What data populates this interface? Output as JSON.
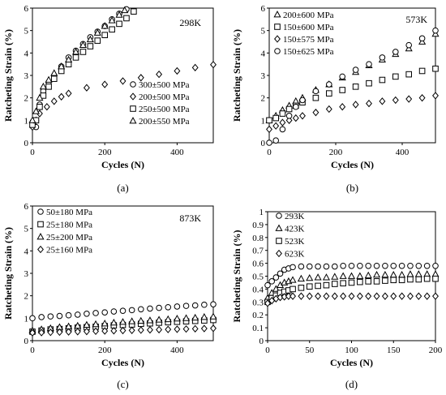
{
  "chart_data": [
    {
      "type": "scatter",
      "panel_label": "(a)",
      "annotation": "298K",
      "xlabel": "Cycles (N)",
      "ylabel": "Ratcheting Strain (%)",
      "xlim": [
        0,
        500
      ],
      "ylim": [
        0,
        6
      ],
      "xticks": [
        0,
        200,
        400
      ],
      "yticks": [
        0,
        1,
        2,
        3,
        4,
        5,
        6
      ],
      "legend": "bottom-right",
      "series": [
        {
          "name": "300±500 MPa",
          "marker": "circle",
          "x": [
            0,
            10,
            20,
            30,
            45,
            60,
            80,
            100,
            120,
            140,
            160,
            180,
            200,
            220,
            240,
            260
          ],
          "y": [
            0.9,
            0.7,
            1.7,
            2.3,
            2.7,
            3.0,
            3.4,
            3.8,
            4.1,
            4.4,
            4.7,
            4.95,
            5.2,
            5.5,
            5.75,
            5.95
          ]
        },
        {
          "name": "200±500 MPa",
          "marker": "diamond",
          "x": [
            0,
            10,
            20,
            40,
            60,
            80,
            100,
            150,
            200,
            250,
            300,
            350,
            400,
            450,
            500
          ],
          "y": [
            0.7,
            1.0,
            1.3,
            1.6,
            1.85,
            2.05,
            2.2,
            2.45,
            2.6,
            2.75,
            2.9,
            3.05,
            3.2,
            3.35,
            3.48
          ]
        },
        {
          "name": "250±500 MPa",
          "marker": "square",
          "x": [
            0,
            10,
            20,
            30,
            45,
            60,
            80,
            100,
            120,
            140,
            160,
            180,
            200,
            220,
            240,
            260,
            280
          ],
          "y": [
            0.8,
            1.0,
            1.6,
            2.1,
            2.5,
            2.85,
            3.2,
            3.5,
            3.8,
            4.05,
            4.3,
            4.55,
            4.8,
            5.05,
            5.3,
            5.55,
            5.85
          ]
        },
        {
          "name": "200±550 MPa",
          "marker": "triangle",
          "x": [
            0,
            10,
            20,
            30,
            45,
            60,
            80,
            100,
            120,
            140,
            160,
            180,
            200,
            220,
            240,
            255
          ],
          "y": [
            1.0,
            1.4,
            2.0,
            2.5,
            2.8,
            3.1,
            3.4,
            3.7,
            4.05,
            4.35,
            4.6,
            4.9,
            5.2,
            5.45,
            5.7,
            5.9
          ]
        }
      ]
    },
    {
      "type": "scatter",
      "panel_label": "(b)",
      "annotation": "573K",
      "xlabel": "Cycles (N)",
      "ylabel": "Ratcheting Strain (%)",
      "xlim": [
        0,
        500
      ],
      "ylim": [
        0,
        6
      ],
      "xticks": [
        0,
        200,
        400
      ],
      "yticks": [
        0,
        1,
        2,
        3,
        4,
        5,
        6
      ],
      "legend": "top-left",
      "series": [
        {
          "name": "200±600 MPa",
          "marker": "triangle",
          "x": [
            0,
            20,
            40,
            60,
            80,
            100,
            140,
            180,
            220,
            260,
            300,
            340,
            380,
            420,
            460,
            500
          ],
          "y": [
            1.0,
            1.2,
            1.45,
            1.65,
            1.85,
            2.0,
            2.35,
            2.6,
            2.9,
            3.15,
            3.45,
            3.7,
            3.95,
            4.2,
            4.5,
            4.85
          ]
        },
        {
          "name": "150±600 MPa",
          "marker": "square",
          "x": [
            0,
            20,
            40,
            60,
            80,
            100,
            140,
            180,
            220,
            260,
            300,
            340,
            380,
            420,
            460,
            500
          ],
          "y": [
            1.0,
            1.1,
            1.3,
            1.5,
            1.65,
            1.8,
            2.0,
            2.2,
            2.35,
            2.5,
            2.65,
            2.8,
            2.95,
            3.05,
            3.2,
            3.3
          ]
        },
        {
          "name": "150±575 MPa",
          "marker": "diamond",
          "x": [
            0,
            20,
            40,
            60,
            80,
            100,
            140,
            180,
            220,
            260,
            300,
            340,
            380,
            420,
            460,
            500
          ],
          "y": [
            0.6,
            0.75,
            0.9,
            1.0,
            1.1,
            1.2,
            1.35,
            1.5,
            1.6,
            1.7,
            1.75,
            1.85,
            1.9,
            1.95,
            2.0,
            2.1
          ]
        },
        {
          "name": "150±625 MPa",
          "marker": "circle",
          "x": [
            0,
            20,
            40,
            60,
            80,
            100,
            140,
            180,
            220,
            260,
            300,
            340,
            380,
            420,
            460,
            500
          ],
          "y": [
            0.0,
            0.1,
            0.6,
            1.2,
            1.6,
            1.9,
            2.3,
            2.6,
            2.95,
            3.25,
            3.5,
            3.8,
            4.05,
            4.35,
            4.65,
            5.0
          ]
        }
      ]
    },
    {
      "type": "scatter",
      "panel_label": "(c)",
      "annotation": "873K",
      "xlabel": "Cycles (N)",
      "ylabel": "Ratcheting Strain (%)",
      "xlim": [
        0,
        500
      ],
      "ylim": [
        0,
        6
      ],
      "xticks": [
        0,
        200,
        400
      ],
      "yticks": [
        0,
        1,
        2,
        3,
        4,
        5,
        6
      ],
      "legend": "top-left",
      "series": [
        {
          "name": "50±180 MPa",
          "marker": "circle",
          "x": [
            0,
            25,
            50,
            75,
            100,
            125,
            150,
            175,
            200,
            225,
            250,
            275,
            300,
            325,
            350,
            375,
            400,
            425,
            450,
            475,
            500
          ],
          "y": [
            1.0,
            1.05,
            1.08,
            1.1,
            1.13,
            1.16,
            1.2,
            1.23,
            1.26,
            1.3,
            1.33,
            1.36,
            1.4,
            1.43,
            1.46,
            1.49,
            1.52,
            1.55,
            1.57,
            1.6,
            1.62
          ]
        },
        {
          "name": "25±180 MPa",
          "marker": "square",
          "x": [
            0,
            25,
            50,
            75,
            100,
            125,
            150,
            175,
            200,
            225,
            250,
            275,
            300,
            325,
            350,
            375,
            400,
            425,
            450,
            475,
            500
          ],
          "y": [
            0.4,
            0.45,
            0.5,
            0.52,
            0.55,
            0.58,
            0.6,
            0.62,
            0.65,
            0.68,
            0.7,
            0.72,
            0.75,
            0.77,
            0.8,
            0.82,
            0.84,
            0.86,
            0.88,
            0.9,
            0.92
          ]
        },
        {
          "name": "25±200 MPa",
          "marker": "triangle",
          "x": [
            0,
            25,
            50,
            75,
            100,
            125,
            150,
            175,
            200,
            225,
            250,
            275,
            300,
            325,
            350,
            375,
            400,
            425,
            450,
            475,
            500
          ],
          "y": [
            0.45,
            0.5,
            0.55,
            0.6,
            0.63,
            0.66,
            0.7,
            0.73,
            0.76,
            0.8,
            0.83,
            0.86,
            0.88,
            0.9,
            0.93,
            0.95,
            0.98,
            1.0,
            1.02,
            1.05,
            1.07
          ]
        },
        {
          "name": "25±160 MPa",
          "marker": "diamond",
          "x": [
            0,
            25,
            50,
            75,
            100,
            125,
            150,
            175,
            200,
            225,
            250,
            275,
            300,
            325,
            350,
            375,
            400,
            425,
            450,
            475,
            500
          ],
          "y": [
            0.35,
            0.36,
            0.37,
            0.38,
            0.39,
            0.4,
            0.41,
            0.42,
            0.43,
            0.44,
            0.45,
            0.46,
            0.47,
            0.48,
            0.49,
            0.5,
            0.51,
            0.52,
            0.53,
            0.54,
            0.55
          ]
        }
      ]
    },
    {
      "type": "scatter",
      "panel_label": "(d)",
      "annotation": "",
      "xlabel": "Cycles (N)",
      "ylabel": "Ratcheting Strain (%)",
      "xlim": [
        0,
        200
      ],
      "ylim": [
        0,
        1
      ],
      "xticks": [
        0,
        50,
        100,
        150,
        200
      ],
      "yticks": [
        0,
        0.1,
        0.2,
        0.3,
        0.4,
        0.5,
        0.6,
        0.7,
        0.8,
        0.9,
        1
      ],
      "legend": "top-left",
      "series": [
        {
          "name": "293K",
          "marker": "circle",
          "x": [
            0,
            5,
            10,
            15,
            20,
            25,
            30,
            40,
            50,
            60,
            70,
            80,
            90,
            100,
            110,
            120,
            130,
            140,
            150,
            160,
            170,
            180,
            190,
            200
          ],
          "y": [
            0.43,
            0.46,
            0.49,
            0.52,
            0.55,
            0.56,
            0.57,
            0.575,
            0.575,
            0.575,
            0.575,
            0.575,
            0.58,
            0.58,
            0.58,
            0.58,
            0.58,
            0.58,
            0.58,
            0.58,
            0.58,
            0.58,
            0.58,
            0.58
          ]
        },
        {
          "name": "423K",
          "marker": "triangle",
          "x": [
            0,
            5,
            10,
            15,
            20,
            25,
            30,
            40,
            50,
            60,
            70,
            80,
            90,
            100,
            110,
            120,
            130,
            140,
            150,
            160,
            170,
            180,
            190,
            200
          ],
          "y": [
            0.33,
            0.37,
            0.4,
            0.43,
            0.45,
            0.46,
            0.47,
            0.48,
            0.485,
            0.49,
            0.49,
            0.495,
            0.5,
            0.5,
            0.5,
            0.505,
            0.51,
            0.51,
            0.51,
            0.51,
            0.515,
            0.515,
            0.515,
            0.515
          ]
        },
        {
          "name": "523K",
          "marker": "square",
          "x": [
            0,
            5,
            10,
            15,
            20,
            25,
            30,
            40,
            50,
            60,
            70,
            80,
            90,
            100,
            110,
            120,
            130,
            140,
            150,
            160,
            170,
            180,
            190,
            200
          ],
          "y": [
            0.3,
            0.33,
            0.35,
            0.37,
            0.38,
            0.39,
            0.4,
            0.41,
            0.42,
            0.425,
            0.43,
            0.44,
            0.445,
            0.45,
            0.455,
            0.46,
            0.46,
            0.465,
            0.47,
            0.47,
            0.475,
            0.475,
            0.48,
            0.48
          ]
        },
        {
          "name": "623K",
          "marker": "diamond",
          "x": [
            0,
            5,
            10,
            15,
            20,
            25,
            30,
            40,
            50,
            60,
            70,
            80,
            90,
            100,
            110,
            120,
            130,
            140,
            150,
            160,
            170,
            180,
            190,
            200
          ],
          "y": [
            0.29,
            0.31,
            0.325,
            0.335,
            0.34,
            0.345,
            0.345,
            0.345,
            0.345,
            0.345,
            0.345,
            0.345,
            0.345,
            0.345,
            0.345,
            0.345,
            0.345,
            0.345,
            0.345,
            0.345,
            0.345,
            0.345,
            0.345,
            0.345
          ]
        }
      ]
    }
  ]
}
